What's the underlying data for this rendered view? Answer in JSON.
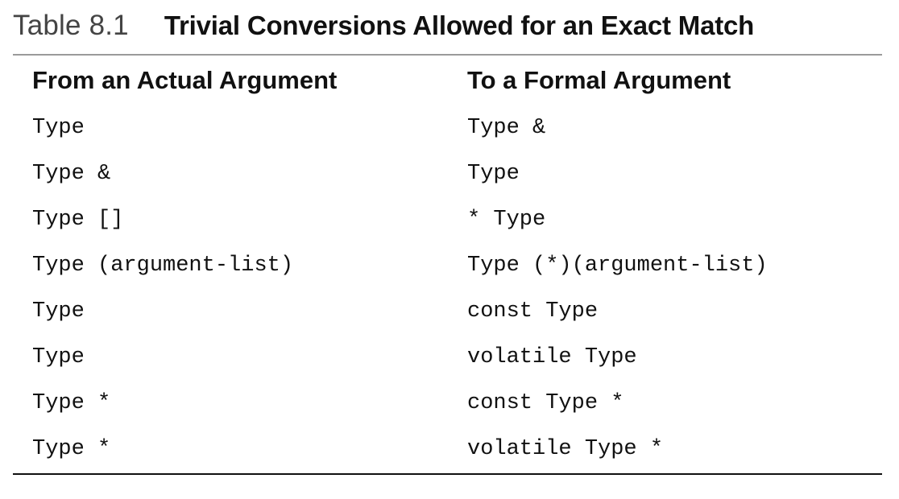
{
  "caption": {
    "label": "Table 8.1",
    "title": "Trivial Conversions Allowed for an Exact Match"
  },
  "columns": {
    "from": "From an Actual Argument",
    "to": "To a Formal Argument"
  },
  "rows": [
    {
      "from": "Type",
      "to": "Type &"
    },
    {
      "from": "Type &",
      "to": "Type"
    },
    {
      "from": "Type []",
      "to": "* Type"
    },
    {
      "from": "Type (argument-list)",
      "to": "Type (*)(argument-list)"
    },
    {
      "from": "Type",
      "to": "const Type"
    },
    {
      "from": "Type",
      "to": "volatile Type"
    },
    {
      "from": "Type *",
      "to": "const Type *"
    },
    {
      "from": "Type *",
      "to": "volatile Type *"
    }
  ]
}
